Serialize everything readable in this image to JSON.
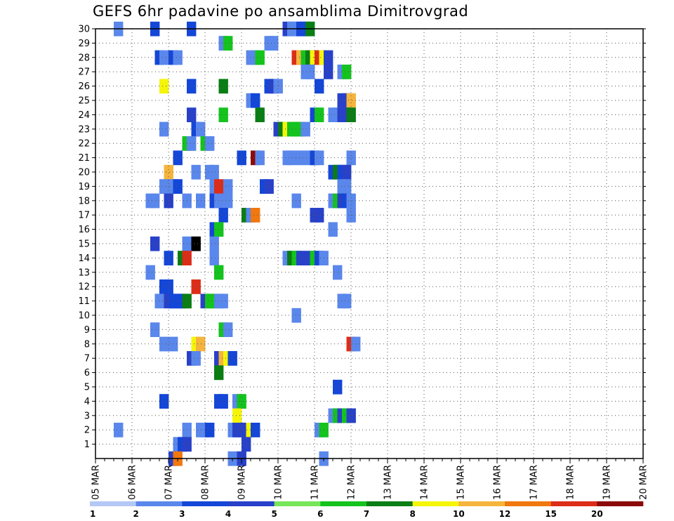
{
  "chart_data": {
    "type": "heatmap",
    "title": "GEFS 6hr padavine po ansamblima Dimitrovgrad",
    "xlabel": "",
    "ylabel": "",
    "x_ticks": [
      "05 MAR",
      "06 MAR",
      "07 MAR",
      "08 MAR",
      "09 MAR",
      "10 MAR",
      "11 MAR",
      "12 MAR",
      "13 MAR",
      "14 MAR",
      "15 MAR",
      "16 MAR",
      "17 MAR",
      "18 MAR",
      "19 MAR",
      "20 MAR"
    ],
    "y_ticks": [
      "1",
      "2",
      "3",
      "4",
      "5",
      "6",
      "7",
      "8",
      "9",
      "10",
      "11",
      "12",
      "13",
      "14",
      "15",
      "16",
      "17",
      "18",
      "19",
      "20",
      "21",
      "22",
      "23",
      "24",
      "25",
      "26",
      "27",
      "28",
      "29",
      "30"
    ],
    "grid": true,
    "legend": {
      "placement": "bottom",
      "labels": [
        "1",
        "2",
        "3",
        "4",
        "5",
        "6",
        "7",
        "8",
        "10",
        "12",
        "15",
        "20"
      ],
      "colors": [
        "#b4c8f5",
        "#5a87eb",
        "#1446d7",
        "#2841c8",
        "#78e65a",
        "#14c31e",
        "#0a7d14",
        "#f5f50a",
        "#f5b43c",
        "#f0780f",
        "#dc2d19",
        "#8c0a0a"
      ]
    },
    "cells": [
      [
        2,
        30,
        1
      ],
      [
        6,
        30,
        2
      ],
      [
        10,
        30,
        2
      ],
      [
        20.5,
        30,
        3
      ],
      [
        21,
        30,
        1
      ],
      [
        21.5,
        30,
        1
      ],
      [
        22,
        30,
        2
      ],
      [
        22.5,
        30,
        2
      ],
      [
        23,
        30,
        6
      ],
      [
        13.5,
        29,
        1
      ],
      [
        14,
        29,
        5
      ],
      [
        18.5,
        29,
        1
      ],
      [
        19,
        29,
        1
      ],
      [
        6.5,
        28,
        2
      ],
      [
        7,
        28,
        1
      ],
      [
        8,
        28,
        2
      ],
      [
        8.5,
        28,
        1
      ],
      [
        16.5,
        28,
        1
      ],
      [
        17,
        28,
        1
      ],
      [
        17.5,
        28,
        5
      ],
      [
        21.5,
        28,
        10
      ],
      [
        22,
        28,
        8
      ],
      [
        22.5,
        28,
        5
      ],
      [
        23,
        28,
        6
      ],
      [
        23.5,
        28,
        7
      ],
      [
        24,
        28,
        10
      ],
      [
        24.5,
        28,
        7
      ],
      [
        25,
        28,
        3
      ],
      [
        22.5,
        27,
        1
      ],
      [
        23,
        27,
        1
      ],
      [
        25,
        27,
        3
      ],
      [
        26.5,
        27,
        1
      ],
      [
        27,
        27,
        5
      ],
      [
        7,
        26,
        7
      ],
      [
        10,
        26,
        2
      ],
      [
        13.5,
        26,
        6
      ],
      [
        18.5,
        26,
        2
      ],
      [
        19,
        26,
        3
      ],
      [
        19.5,
        26,
        1
      ],
      [
        24,
        26,
        2
      ],
      [
        16.5,
        25,
        1
      ],
      [
        17,
        25,
        2
      ],
      [
        26.5,
        25,
        3
      ],
      [
        27,
        25,
        3
      ],
      [
        27.5,
        25,
        8
      ],
      [
        10,
        24,
        3
      ],
      [
        13.5,
        24,
        5
      ],
      [
        17.5,
        24,
        6
      ],
      [
        23.5,
        24,
        2
      ],
      [
        24,
        24,
        5
      ],
      [
        25.5,
        24,
        1
      ],
      [
        26,
        24,
        1
      ],
      [
        26.5,
        24,
        3
      ],
      [
        27,
        24,
        3
      ],
      [
        27.5,
        24,
        6
      ],
      [
        7,
        23,
        1
      ],
      [
        10.5,
        23,
        2
      ],
      [
        11,
        23,
        1
      ],
      [
        19.5,
        23,
        3
      ],
      [
        20,
        23,
        6
      ],
      [
        20.5,
        23,
        7
      ],
      [
        21,
        23,
        5
      ],
      [
        21.5,
        23,
        5
      ],
      [
        22,
        23,
        5
      ],
      [
        22.5,
        23,
        1
      ],
      [
        9.5,
        22,
        5
      ],
      [
        10,
        22,
        1
      ],
      [
        11.5,
        22,
        5
      ],
      [
        12,
        22,
        1
      ],
      [
        8.5,
        21,
        2
      ],
      [
        15.5,
        21,
        2
      ],
      [
        17,
        21,
        11
      ],
      [
        17.5,
        21,
        1
      ],
      [
        20.5,
        21,
        1
      ],
      [
        21,
        21,
        1
      ],
      [
        22,
        21,
        1
      ],
      [
        23,
        21,
        1
      ],
      [
        23.5,
        21,
        2
      ],
      [
        24,
        21,
        1
      ],
      [
        27.5,
        21,
        1
      ],
      [
        7.5,
        20,
        8
      ],
      [
        10.5,
        20,
        1
      ],
      [
        12,
        20,
        1
      ],
      [
        12.5,
        20,
        1
      ],
      [
        25.5,
        20,
        2
      ],
      [
        26,
        20,
        6
      ],
      [
        26.5,
        20,
        2
      ],
      [
        27,
        20,
        3
      ],
      [
        7,
        19,
        1
      ],
      [
        8,
        19,
        1
      ],
      [
        8.5,
        19,
        2
      ],
      [
        12.5,
        19,
        1
      ],
      [
        13,
        19,
        10
      ],
      [
        14,
        19,
        1
      ],
      [
        18,
        19,
        2
      ],
      [
        18.5,
        19,
        3
      ],
      [
        26.5,
        19,
        1
      ],
      [
        27,
        19,
        1
      ],
      [
        5.5,
        18,
        1
      ],
      [
        6,
        18,
        1
      ],
      [
        7.5,
        18,
        3
      ],
      [
        9.5,
        18,
        1
      ],
      [
        11,
        18,
        1
      ],
      [
        12.5,
        18,
        2
      ],
      [
        13,
        18,
        1
      ],
      [
        14,
        18,
        1
      ],
      [
        21.5,
        18,
        1
      ],
      [
        25.5,
        18,
        1
      ],
      [
        26,
        18,
        5
      ],
      [
        26.5,
        18,
        3
      ],
      [
        27,
        18,
        2
      ],
      [
        27.5,
        18,
        1
      ],
      [
        13.5,
        17,
        2
      ],
      [
        16,
        17,
        6
      ],
      [
        16.5,
        17,
        1
      ],
      [
        17,
        17,
        9
      ],
      [
        23.5,
        17,
        3
      ],
      [
        24,
        17,
        3
      ],
      [
        27.5,
        17,
        1
      ],
      [
        12.5,
        16,
        2
      ],
      [
        13,
        16,
        5
      ],
      [
        25.5,
        16,
        1
      ],
      [
        6,
        15,
        3
      ],
      [
        9.5,
        15,
        1
      ],
      [
        10.5,
        15,
        12
      ],
      [
        12.5,
        15,
        1
      ],
      [
        7.5,
        14,
        2
      ],
      [
        9,
        14,
        6
      ],
      [
        9.5,
        14,
        10
      ],
      [
        12.5,
        14,
        1
      ],
      [
        20.5,
        14,
        1
      ],
      [
        21,
        14,
        6
      ],
      [
        21.5,
        14,
        5
      ],
      [
        22,
        14,
        3
      ],
      [
        23,
        14,
        3
      ],
      [
        23.5,
        14,
        5
      ],
      [
        24,
        14,
        2
      ],
      [
        24.5,
        14,
        1
      ],
      [
        5.5,
        13,
        1
      ],
      [
        13,
        13,
        5
      ],
      [
        26,
        13,
        1
      ],
      [
        7,
        12,
        2
      ],
      [
        7.5,
        12,
        2
      ],
      [
        10.5,
        12,
        10
      ],
      [
        6.5,
        11,
        1
      ],
      [
        7.5,
        11,
        3
      ],
      [
        8,
        11,
        2
      ],
      [
        8.5,
        11,
        2
      ],
      [
        9,
        11,
        2
      ],
      [
        9.5,
        11,
        6
      ],
      [
        11.5,
        11,
        3
      ],
      [
        12,
        11,
        5
      ],
      [
        12.5,
        11,
        5
      ],
      [
        13,
        11,
        1
      ],
      [
        13.5,
        11,
        1
      ],
      [
        26.5,
        11,
        1
      ],
      [
        27,
        11,
        1
      ],
      [
        21.5,
        10,
        1
      ],
      [
        6,
        9,
        1
      ],
      [
        13.5,
        9,
        5
      ],
      [
        14,
        9,
        1
      ],
      [
        7,
        8,
        1
      ],
      [
        8,
        8,
        1
      ],
      [
        10.5,
        8,
        7
      ],
      [
        11,
        8,
        8
      ],
      [
        27.5,
        8,
        10
      ],
      [
        28,
        8,
        1
      ],
      [
        10,
        7,
        3
      ],
      [
        10.5,
        7,
        1
      ],
      [
        13,
        7,
        3
      ],
      [
        13.5,
        7,
        8
      ],
      [
        14,
        7,
        7
      ],
      [
        14.5,
        7,
        2
      ],
      [
        13,
        6,
        6
      ],
      [
        26,
        5,
        2
      ],
      [
        7,
        4,
        2
      ],
      [
        13,
        4,
        2
      ],
      [
        13.5,
        4,
        2
      ],
      [
        15,
        4,
        1
      ],
      [
        15.5,
        4,
        5
      ],
      [
        15,
        3,
        7
      ],
      [
        25.5,
        3,
        1
      ],
      [
        26,
        3,
        5
      ],
      [
        26.5,
        3,
        3
      ],
      [
        27,
        3,
        5
      ],
      [
        27.5,
        3,
        3
      ],
      [
        2,
        2,
        1
      ],
      [
        9.5,
        2,
        1
      ],
      [
        11,
        2,
        1
      ],
      [
        11.5,
        2,
        1
      ],
      [
        12,
        2,
        2
      ],
      [
        14.5,
        2,
        1
      ],
      [
        15,
        2,
        3
      ],
      [
        15.5,
        2,
        3
      ],
      [
        16,
        2,
        3
      ],
      [
        16.5,
        2,
        7
      ],
      [
        17,
        2,
        2
      ],
      [
        24,
        2,
        1
      ],
      [
        24.5,
        2,
        5
      ],
      [
        8.5,
        1,
        1
      ],
      [
        9,
        1,
        2
      ],
      [
        9.5,
        1,
        3
      ],
      [
        16,
        1,
        3
      ],
      [
        8,
        0,
        3
      ],
      [
        8.5,
        0,
        9
      ],
      [
        14.5,
        0,
        1
      ],
      [
        15.5,
        0,
        3
      ],
      [
        24.5,
        0,
        1
      ]
    ]
  }
}
